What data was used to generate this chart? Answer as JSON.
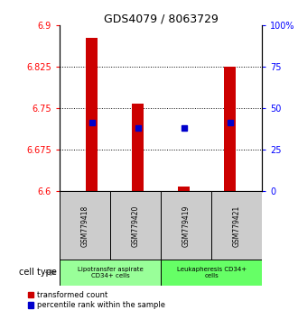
{
  "title": "GDS4079 / 8063729",
  "samples": [
    "GSM779418",
    "GSM779420",
    "GSM779419",
    "GSM779421"
  ],
  "red_values": [
    6.878,
    6.758,
    6.608,
    6.825
  ],
  "blue_values": [
    6.725,
    6.715,
    6.715,
    6.725
  ],
  "ymin": 6.6,
  "ymax": 6.9,
  "yticks_left": [
    6.6,
    6.675,
    6.75,
    6.825,
    6.9
  ],
  "yticks_right_vals": [
    0,
    25,
    50,
    75,
    100
  ],
  "yticks_right_labels": [
    "0",
    "25",
    "50",
    "75",
    "100%"
  ],
  "grid_lines": [
    6.675,
    6.75,
    6.825
  ],
  "bar_color": "#cc0000",
  "blue_color": "#0000cc",
  "group1_label": "Lipotransfer aspirate\nCD34+ cells",
  "group2_label": "Leukapheresis CD34+\ncells",
  "group1_color": "#99ff99",
  "group2_color": "#66ff66",
  "cell_type_label": "cell type",
  "legend_red": "transformed count",
  "legend_blue": "percentile rank within the sample",
  "sample_box_color": "#cccccc",
  "title_fontsize": 9,
  "tick_fontsize": 7,
  "label_fontsize": 6
}
